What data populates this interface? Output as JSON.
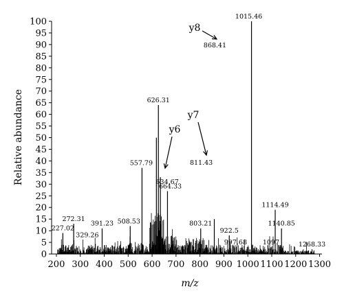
{
  "chart_data": {
    "type": "bar",
    "xlabel": "m/z",
    "ylabel": "Relative abundance",
    "xlim": [
      180,
      1310
    ],
    "ylim": [
      0,
      100
    ],
    "xticks": [
      "200",
      "300",
      "400",
      "500",
      "600",
      "700",
      "800",
      "900",
      "1000",
      "1100",
      "1200",
      "1300"
    ],
    "yticks": [
      "0",
      "5",
      "10",
      "15",
      "20",
      "25",
      "30",
      "35",
      "40",
      "45",
      "50",
      "55",
      "60",
      "65",
      "70",
      "75",
      "80",
      "85",
      "90",
      "95",
      "100"
    ],
    "grid": false,
    "labeled_peaks": [
      {
        "mz": 227.02,
        "label": "227.02",
        "intensity": 9
      },
      {
        "mz": 272.31,
        "label": "272.31",
        "intensity": 13
      },
      {
        "mz": 329.26,
        "label": "329.26",
        "intensity": 6
      },
      {
        "mz": 391.23,
        "label": "391.23",
        "intensity": 11
      },
      {
        "mz": 508.53,
        "label": "508.53",
        "intensity": 12
      },
      {
        "mz": 557.79,
        "label": "557.79",
        "intensity": 37
      },
      {
        "mz": 626.31,
        "label": "626.31",
        "intensity": 64
      },
      {
        "mz": 634.67,
        "label": "634.67",
        "intensity": 33
      },
      {
        "mz": 664.33,
        "label": "664.33",
        "intensity": 27
      },
      {
        "mz": 803.21,
        "label": "803.21",
        "intensity": 11
      },
      {
        "mz": 811.43,
        "label": "811.43",
        "intensity": 29
      },
      {
        "mz": 868.41,
        "label": "868.41",
        "intensity": 91
      },
      {
        "mz": 922.5,
        "label": "922.5",
        "intensity": 8
      },
      {
        "mz": 997.68,
        "label": "997.68",
        "intensity": 3
      },
      {
        "mz": 1015.46,
        "label": "1015.46",
        "intensity": 100
      },
      {
        "mz": 1097,
        "label": "1097",
        "intensity": 3
      },
      {
        "mz": 1114.49,
        "label": "1114.49",
        "intensity": 19
      },
      {
        "mz": 1140.85,
        "label": "1140.85",
        "intensity": 11
      },
      {
        "mz": 1268.33,
        "label": "1268.33",
        "intensity": 2
      }
    ],
    "major_peaks": [
      {
        "mz": 557.79,
        "intensity": 37
      },
      {
        "mz": 618.0,
        "intensity": 50
      },
      {
        "mz": 626.31,
        "intensity": 64
      },
      {
        "mz": 634.67,
        "intensity": 33
      },
      {
        "mz": 664.33,
        "intensity": 27
      },
      {
        "mz": 1015.46,
        "intensity": 100
      },
      {
        "mz": 1114.49,
        "intensity": 19
      },
      {
        "mz": 1140.85,
        "intensity": 11
      },
      {
        "mz": 508.53,
        "intensity": 12
      },
      {
        "mz": 391.23,
        "intensity": 11
      },
      {
        "mz": 272.31,
        "intensity": 13
      },
      {
        "mz": 227.02,
        "intensity": 9
      },
      {
        "mz": 803.21,
        "intensity": 11
      },
      {
        "mz": 860.0,
        "intensity": 15
      },
      {
        "mz": 922.5,
        "intensity": 8
      },
      {
        "mz": 997.68,
        "intensity": 3
      },
      {
        "mz": 1097,
        "intensity": 3
      },
      {
        "mz": 1268.33,
        "intensity": 2
      }
    ],
    "ion_annotations": [
      {
        "label": "y8",
        "peak": "868.41"
      },
      {
        "label": "y7",
        "peak": "811.43"
      },
      {
        "label": "y6",
        "peak": "634.67"
      }
    ]
  }
}
